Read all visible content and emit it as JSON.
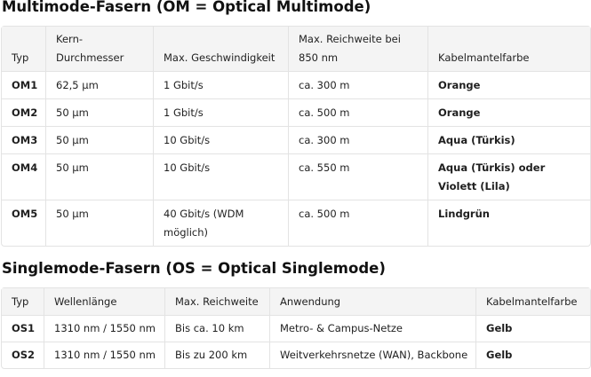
{
  "om": {
    "title": "Multimode-Fasern (OM = Optical Multimode)",
    "headers": [
      "Typ",
      "Kern-\nDurchmesser",
      "Max. Geschwindigkeit",
      "Max. Reichweite bei\n850 nm",
      "Kabelmantelfarbe"
    ],
    "rows": [
      [
        "OM1",
        "62,5 µm",
        "1 Gbit/s",
        "ca. 300 m",
        "Orange"
      ],
      [
        "OM2",
        "50 µm",
        "1 Gbit/s",
        "ca. 500 m",
        "Orange"
      ],
      [
        "OM3",
        "50 µm",
        "10 Gbit/s",
        "ca. 300 m",
        "Aqua (Türkis)"
      ],
      [
        "OM4",
        "50 µm",
        "10 Gbit/s",
        "ca. 550 m",
        "Aqua (Türkis) oder Violett (Lila)"
      ],
      [
        "OM5",
        "50 µm",
        "40 Gbit/s (WDM möglich)",
        "ca. 500 m",
        "Lindgrün"
      ]
    ]
  },
  "os": {
    "title": "Singlemode-Fasern (OS = Optical Singlemode)",
    "headers": [
      "Typ",
      "Wellenlänge",
      "Max. Reichweite",
      "Anwendung",
      "Kabelmantelfarbe"
    ],
    "rows": [
      [
        "OS1",
        "1310 nm / 1550 nm",
        "Bis ca. 10 km",
        "Metro- & Campus-Netze",
        "Gelb"
      ],
      [
        "OS2",
        "1310 nm / 1550 nm",
        "Bis zu 200 km",
        "Weitverkehrsnetze (WAN), Backbone",
        "Gelb"
      ]
    ]
  }
}
